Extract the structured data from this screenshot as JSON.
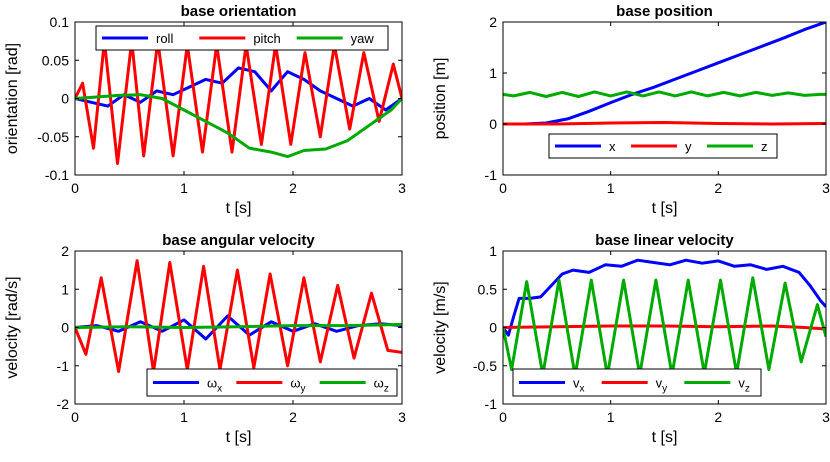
{
  "chart_data": [
    {
      "type": "line",
      "title": "base orientation",
      "xlabel": "t [s]",
      "ylabel": "orientation [rad]",
      "xlim": [
        0,
        3
      ],
      "ylim": [
        -0.1,
        0.1
      ],
      "xticks": [
        0,
        1,
        2,
        3
      ],
      "xtick_labels": [
        "0",
        "1",
        "2",
        "3"
      ],
      "yticks": [
        -0.1,
        -0.05,
        0,
        0.05,
        0.1
      ],
      "ytick_labels": [
        "-0.1",
        "-0.05",
        "0",
        "0.05",
        "0.1"
      ],
      "legend_position": "top",
      "series": [
        {
          "name": "roll",
          "color": "#0000ff",
          "x": [
            0,
            0.15,
            0.3,
            0.45,
            0.6,
            0.75,
            0.9,
            1.05,
            1.2,
            1.35,
            1.5,
            1.65,
            1.8,
            1.95,
            2.1,
            2.25,
            2.4,
            2.55,
            2.7,
            2.85,
            3.0
          ],
          "y": [
            0,
            -0.005,
            -0.01,
            0.005,
            -0.005,
            0.01,
            0.005,
            0.015,
            0.025,
            0.02,
            0.04,
            0.035,
            0.01,
            0.035,
            0.025,
            0.01,
            0.0,
            -0.01,
            0.0,
            -0.015,
            0.0
          ]
        },
        {
          "name": "pitch",
          "color": "#ff0000",
          "x": [
            0,
            0.07,
            0.17,
            0.27,
            0.39,
            0.52,
            0.63,
            0.76,
            0.9,
            1.03,
            1.17,
            1.3,
            1.44,
            1.57,
            1.71,
            1.84,
            1.98,
            2.11,
            2.25,
            2.38,
            2.52,
            2.65,
            2.79,
            2.92,
            3.0
          ],
          "y": [
            0,
            0.02,
            -0.065,
            0.075,
            -0.085,
            0.075,
            -0.075,
            0.075,
            -0.075,
            0.07,
            -0.07,
            0.07,
            -0.07,
            0.07,
            -0.06,
            0.07,
            -0.06,
            0.06,
            -0.05,
            0.07,
            -0.04,
            0.06,
            -0.03,
            0.045,
            0.0
          ]
        },
        {
          "name": "yaw",
          "color": "#00aa00",
          "x": [
            0,
            0.2,
            0.4,
            0.6,
            0.8,
            1.0,
            1.2,
            1.4,
            1.6,
            1.8,
            1.95,
            2.1,
            2.3,
            2.5,
            2.7,
            2.9,
            3.0
          ],
          "y": [
            0,
            0.002,
            0.004,
            0.005,
            0.0,
            -0.015,
            -0.03,
            -0.045,
            -0.065,
            -0.07,
            -0.076,
            -0.068,
            -0.066,
            -0.055,
            -0.035,
            -0.015,
            0.0
          ]
        }
      ]
    },
    {
      "type": "line",
      "title": "base position",
      "xlabel": "t [s]",
      "ylabel": "position [m]",
      "xlim": [
        0,
        3
      ],
      "ylim": [
        -1,
        2
      ],
      "xticks": [
        0,
        1,
        2,
        3
      ],
      "xtick_labels": [
        "0",
        "1",
        "2",
        "3"
      ],
      "yticks": [
        -1,
        0,
        1,
        2
      ],
      "ytick_labels": [
        "-1",
        "0",
        "1",
        "2"
      ],
      "legend_position": "bottom",
      "series": [
        {
          "name": "x",
          "color": "#0000ff",
          "x": [
            0,
            0.2,
            0.4,
            0.6,
            0.8,
            1.0,
            1.2,
            1.4,
            1.6,
            1.8,
            2.0,
            2.2,
            2.4,
            2.6,
            2.8,
            3.0
          ],
          "y": [
            0,
            0.0,
            0.02,
            0.1,
            0.25,
            0.42,
            0.58,
            0.72,
            0.88,
            1.04,
            1.2,
            1.36,
            1.52,
            1.68,
            1.85,
            2.0
          ]
        },
        {
          "name": "y",
          "color": "#ff0000",
          "x": [
            0,
            0.5,
            1.0,
            1.5,
            2.0,
            2.5,
            3.0
          ],
          "y": [
            0,
            0.0,
            0.02,
            0.03,
            0.01,
            0.0,
            0.01
          ]
        },
        {
          "name": "z",
          "color": "#00aa00",
          "x": [
            0,
            0.1,
            0.25,
            0.4,
            0.55,
            0.7,
            0.85,
            1.0,
            1.15,
            1.3,
            1.45,
            1.6,
            1.75,
            1.9,
            2.05,
            2.2,
            2.35,
            2.5,
            2.65,
            2.8,
            2.95,
            3.0
          ],
          "y": [
            0.58,
            0.55,
            0.62,
            0.54,
            0.62,
            0.54,
            0.63,
            0.55,
            0.63,
            0.55,
            0.63,
            0.55,
            0.63,
            0.55,
            0.62,
            0.55,
            0.62,
            0.56,
            0.61,
            0.56,
            0.58,
            0.58
          ]
        }
      ]
    },
    {
      "type": "line",
      "title": "base angular velocity",
      "xlabel": "t [s]",
      "ylabel": "velocity [rad/s]",
      "xlim": [
        0,
        3
      ],
      "ylim": [
        -2,
        2
      ],
      "xticks": [
        0,
        1,
        2,
        3
      ],
      "xtick_labels": [
        "0",
        "1",
        "2",
        "3"
      ],
      "yticks": [
        -2,
        -1,
        0,
        1,
        2
      ],
      "ytick_labels": [
        "-2",
        "-1",
        "0",
        "1",
        "2"
      ],
      "legend_position": "bottom",
      "series": [
        {
          "name": "ω_x",
          "color": "#0000ff",
          "x": [
            0,
            0.2,
            0.4,
            0.6,
            0.8,
            1.0,
            1.2,
            1.4,
            1.6,
            1.8,
            2.0,
            2.2,
            2.4,
            2.6,
            2.8,
            3.0
          ],
          "y": [
            0,
            0.05,
            -0.1,
            0.15,
            -0.1,
            0.2,
            -0.3,
            0.3,
            -0.2,
            0.15,
            -0.1,
            0.1,
            -0.1,
            0.05,
            0.1,
            0.05
          ]
        },
        {
          "name": "ω_y",
          "color": "#ff0000",
          "x": [
            0,
            0.1,
            0.24,
            0.4,
            0.57,
            0.72,
            0.87,
            1.03,
            1.18,
            1.33,
            1.49,
            1.64,
            1.79,
            1.95,
            2.1,
            2.25,
            2.41,
            2.56,
            2.72,
            2.87,
            3.0
          ],
          "y": [
            0,
            -0.7,
            1.3,
            -1.15,
            1.75,
            -1.15,
            1.7,
            -1.1,
            1.6,
            -1.1,
            1.5,
            -1.05,
            1.4,
            -1.0,
            1.3,
            -0.9,
            1.1,
            -0.8,
            0.9,
            -0.6,
            -0.65
          ]
        },
        {
          "name": "ω_z",
          "color": "#00aa00",
          "x": [
            0,
            0.5,
            1.0,
            1.5,
            2.0,
            2.5,
            3.0
          ],
          "y": [
            0,
            0.02,
            0.0,
            0.02,
            0.05,
            0.05,
            0.08
          ]
        }
      ]
    },
    {
      "type": "line",
      "title": "base linear velocity",
      "xlabel": "t [s]",
      "ylabel": "velocity [m/s]",
      "xlim": [
        0,
        3
      ],
      "ylim": [
        -1,
        1
      ],
      "xticks": [
        0,
        1,
        2,
        3
      ],
      "xtick_labels": [
        "0",
        "1",
        "2",
        "3"
      ],
      "yticks": [
        -1,
        -0.5,
        0,
        0.5,
        1
      ],
      "ytick_labels": [
        "-1",
        "-0.5",
        "0",
        "0.5",
        "1"
      ],
      "legend_position": "bottom",
      "series": [
        {
          "name": "v_x",
          "color": "#0000ff",
          "x": [
            0,
            0.05,
            0.1,
            0.15,
            0.25,
            0.35,
            0.45,
            0.55,
            0.65,
            0.8,
            0.95,
            1.1,
            1.25,
            1.4,
            1.55,
            1.7,
            1.85,
            2.0,
            2.15,
            2.3,
            2.45,
            2.6,
            2.75,
            2.85,
            2.95,
            3.0
          ],
          "y": [
            0,
            -0.1,
            0.15,
            0.38,
            0.38,
            0.4,
            0.55,
            0.7,
            0.75,
            0.72,
            0.82,
            0.8,
            0.88,
            0.85,
            0.82,
            0.88,
            0.84,
            0.87,
            0.8,
            0.82,
            0.76,
            0.8,
            0.72,
            0.55,
            0.35,
            0.27
          ]
        },
        {
          "name": "v_y",
          "color": "#ff0000",
          "x": [
            0,
            0.5,
            1.0,
            1.5,
            2.0,
            2.5,
            2.8,
            3.0
          ],
          "y": [
            0,
            0.01,
            0.02,
            0.02,
            0.01,
            0.02,
            0.0,
            -0.02
          ]
        },
        {
          "name": "v_z",
          "color": "#00aa00",
          "x": [
            0,
            0.08,
            0.22,
            0.37,
            0.52,
            0.67,
            0.82,
            0.97,
            1.12,
            1.27,
            1.42,
            1.57,
            1.72,
            1.87,
            2.02,
            2.17,
            2.32,
            2.47,
            2.62,
            2.77,
            2.92,
            3.0
          ],
          "y": [
            0,
            -0.55,
            0.6,
            -0.62,
            0.62,
            -0.63,
            0.62,
            -0.63,
            0.62,
            -0.62,
            0.62,
            -0.62,
            0.62,
            -0.6,
            0.62,
            -0.6,
            0.65,
            -0.55,
            0.58,
            -0.45,
            0.3,
            -0.12
          ]
        }
      ]
    }
  ]
}
